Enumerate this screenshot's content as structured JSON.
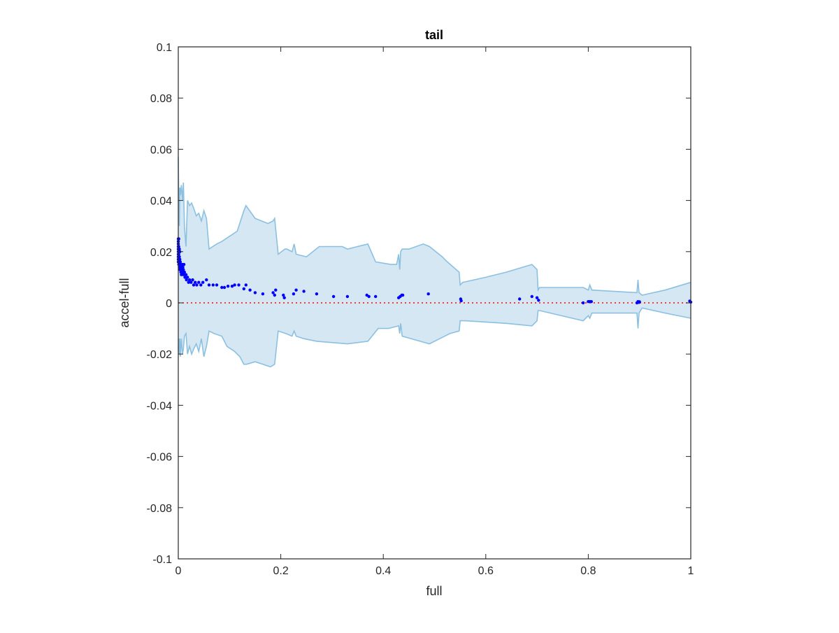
{
  "chart_data": {
    "type": "scatter",
    "title": "tail",
    "xlabel": "full",
    "ylabel": "accel-full",
    "xlim": [
      0,
      1
    ],
    "ylim": [
      -0.1,
      0.1
    ],
    "x_ticks": [
      0,
      0.2,
      0.4,
      0.6,
      0.8,
      1
    ],
    "x_tick_labels": [
      "0",
      "0.2",
      "0.4",
      "0.6",
      "0.8",
      "1"
    ],
    "y_ticks": [
      -0.1,
      -0.08,
      -0.06,
      -0.04,
      -0.02,
      0,
      0.02,
      0.04,
      0.06,
      0.08,
      0.1
    ],
    "y_tick_labels": [
      "-0.1",
      "-0.08",
      "-0.06",
      "-0.04",
      "-0.02",
      "0",
      "0.02",
      "0.04",
      "0.06",
      "0.08",
      "0.1"
    ],
    "grid": false,
    "reference_line": {
      "y": 0,
      "style": "dotted",
      "color": "#ff0000"
    },
    "colors": {
      "points": "#0000ff",
      "band_fill": "#d6e7f4",
      "band_edge": "#8cc0e0",
      "axes": "#262626"
    },
    "band": {
      "upper": [
        [
          0,
          0.057
        ],
        [
          0.001,
          0.04
        ],
        [
          0.002,
          0.03
        ],
        [
          0.003,
          0.045
        ],
        [
          0.004,
          0.042
        ],
        [
          0.006,
          0.046
        ],
        [
          0.008,
          0.04
        ],
        [
          0.01,
          0.047
        ],
        [
          0.012,
          0.03
        ],
        [
          0.015,
          0.022
        ],
        [
          0.018,
          0.04
        ],
        [
          0.022,
          0.038
        ],
        [
          0.026,
          0.039
        ],
        [
          0.03,
          0.037
        ],
        [
          0.035,
          0.034
        ],
        [
          0.04,
          0.035
        ],
        [
          0.045,
          0.032
        ],
        [
          0.05,
          0.036
        ],
        [
          0.055,
          0.033
        ],
        [
          0.06,
          0.021
        ],
        [
          0.075,
          0.023
        ],
        [
          0.085,
          0.024
        ],
        [
          0.1,
          0.026
        ],
        [
          0.115,
          0.028
        ],
        [
          0.128,
          0.036
        ],
        [
          0.132,
          0.038
        ],
        [
          0.15,
          0.033
        ],
        [
          0.175,
          0.031
        ],
        [
          0.185,
          0.032
        ],
        [
          0.188,
          0.033
        ],
        [
          0.195,
          0.019
        ],
        [
          0.208,
          0.021
        ],
        [
          0.212,
          0.021
        ],
        [
          0.222,
          0.02
        ],
        [
          0.226,
          0.023
        ],
        [
          0.23,
          0.019
        ],
        [
          0.25,
          0.018
        ],
        [
          0.275,
          0.022
        ],
        [
          0.32,
          0.022
        ],
        [
          0.33,
          0.021
        ],
        [
          0.37,
          0.023
        ],
        [
          0.385,
          0.016
        ],
        [
          0.415,
          0.015
        ],
        [
          0.426,
          0.015
        ],
        [
          0.43,
          0.019
        ],
        [
          0.432,
          0.013
        ],
        [
          0.434,
          0.02
        ],
        [
          0.437,
          0.021
        ],
        [
          0.45,
          0.021
        ],
        [
          0.478,
          0.023
        ],
        [
          0.49,
          0.022
        ],
        [
          0.515,
          0.018
        ],
        [
          0.525,
          0.016
        ],
        [
          0.548,
          0.012
        ],
        [
          0.55,
          0.007
        ],
        [
          0.555,
          0.008
        ],
        [
          0.6,
          0.01
        ],
        [
          0.64,
          0.012
        ],
        [
          0.69,
          0.015
        ],
        [
          0.7,
          0.013
        ],
        [
          0.702,
          0.005
        ],
        [
          0.705,
          0.006
        ],
        [
          0.79,
          0.006
        ],
        [
          0.8,
          0.005
        ],
        [
          0.803,
          0.007
        ],
        [
          0.807,
          0.005
        ],
        [
          0.895,
          0.004
        ],
        [
          0.897,
          0.009
        ],
        [
          0.899,
          0.004
        ],
        [
          0.905,
          0.003
        ],
        [
          0.95,
          0.005
        ],
        [
          1.0,
          0.008
        ]
      ],
      "lower": [
        [
          0,
          -0.018
        ],
        [
          0.001,
          -0.014
        ],
        [
          0.002,
          -0.02
        ],
        [
          0.003,
          -0.014
        ],
        [
          0.004,
          -0.021
        ],
        [
          0.006,
          -0.014
        ],
        [
          0.008,
          -0.02
        ],
        [
          0.01,
          -0.018
        ],
        [
          0.012,
          -0.013
        ],
        [
          0.015,
          -0.012
        ],
        [
          0.018,
          -0.02
        ],
        [
          0.022,
          -0.017
        ],
        [
          0.026,
          -0.02
        ],
        [
          0.03,
          -0.018
        ],
        [
          0.035,
          -0.016
        ],
        [
          0.04,
          -0.019
        ],
        [
          0.045,
          -0.014
        ],
        [
          0.05,
          -0.021
        ],
        [
          0.055,
          -0.017
        ],
        [
          0.06,
          -0.011
        ],
        [
          0.07,
          -0.012
        ],
        [
          0.085,
          -0.013
        ],
        [
          0.095,
          -0.017
        ],
        [
          0.11,
          -0.019
        ],
        [
          0.12,
          -0.021
        ],
        [
          0.128,
          -0.024
        ],
        [
          0.133,
          -0.024
        ],
        [
          0.15,
          -0.023
        ],
        [
          0.165,
          -0.024
        ],
        [
          0.18,
          -0.025
        ],
        [
          0.188,
          -0.024
        ],
        [
          0.195,
          -0.011
        ],
        [
          0.21,
          -0.012
        ],
        [
          0.222,
          -0.013
        ],
        [
          0.226,
          -0.011
        ],
        [
          0.23,
          -0.013
        ],
        [
          0.245,
          -0.014
        ],
        [
          0.27,
          -0.015
        ],
        [
          0.33,
          -0.016
        ],
        [
          0.37,
          -0.015
        ],
        [
          0.39,
          -0.01
        ],
        [
          0.41,
          -0.01
        ],
        [
          0.43,
          -0.009
        ],
        [
          0.432,
          -0.012
        ],
        [
          0.434,
          -0.008
        ],
        [
          0.437,
          -0.013
        ],
        [
          0.49,
          -0.016
        ],
        [
          0.53,
          -0.012
        ],
        [
          0.548,
          -0.011
        ],
        [
          0.55,
          -0.007
        ],
        [
          0.56,
          -0.007
        ],
        [
          0.64,
          -0.008
        ],
        [
          0.69,
          -0.009
        ],
        [
          0.7,
          -0.007
        ],
        [
          0.702,
          -0.003
        ],
        [
          0.705,
          -0.003
        ],
        [
          0.79,
          -0.007
        ],
        [
          0.8,
          -0.005
        ],
        [
          0.803,
          -0.006
        ],
        [
          0.807,
          -0.004
        ],
        [
          0.895,
          -0.004
        ],
        [
          0.897,
          -0.01
        ],
        [
          0.899,
          -0.004
        ],
        [
          0.905,
          -0.002
        ],
        [
          0.95,
          -0.004
        ],
        [
          1.0,
          -0.006
        ]
      ]
    },
    "series": [
      {
        "points": [
          [
            0.0,
            0.025
          ],
          [
            0.0,
            0.024
          ],
          [
            0.0,
            0.023
          ],
          [
            0.0,
            0.022
          ],
          [
            0.0,
            0.021
          ],
          [
            0.0,
            0.02
          ],
          [
            0.0,
            0.019
          ],
          [
            0.0,
            0.018
          ],
          [
            0.0,
            0.017
          ],
          [
            0.0,
            0.016
          ],
          [
            0.001,
            0.025
          ],
          [
            0.001,
            0.022
          ],
          [
            0.001,
            0.019
          ],
          [
            0.001,
            0.017
          ],
          [
            0.001,
            0.015
          ],
          [
            0.002,
            0.021
          ],
          [
            0.002,
            0.018
          ],
          [
            0.002,
            0.016
          ],
          [
            0.002,
            0.014
          ],
          [
            0.003,
            0.02
          ],
          [
            0.003,
            0.017
          ],
          [
            0.003,
            0.013
          ],
          [
            0.004,
            0.016
          ],
          [
            0.004,
            0.014
          ],
          [
            0.005,
            0.015
          ],
          [
            0.005,
            0.012
          ],
          [
            0.006,
            0.014
          ],
          [
            0.006,
            0.011
          ],
          [
            0.007,
            0.013
          ],
          [
            0.008,
            0.015
          ],
          [
            0.008,
            0.012
          ],
          [
            0.009,
            0.014
          ],
          [
            0.01,
            0.013
          ],
          [
            0.01,
            0.011
          ],
          [
            0.011,
            0.015
          ],
          [
            0.012,
            0.012
          ],
          [
            0.013,
            0.01
          ],
          [
            0.015,
            0.011
          ],
          [
            0.016,
            0.009
          ],
          [
            0.018,
            0.01
          ],
          [
            0.02,
            0.008
          ],
          [
            0.022,
            0.009
          ],
          [
            0.025,
            0.008
          ],
          [
            0.028,
            0.009
          ],
          [
            0.03,
            0.007
          ],
          [
            0.033,
            0.008
          ],
          [
            0.036,
            0.007
          ],
          [
            0.04,
            0.008
          ],
          [
            0.044,
            0.007
          ],
          [
            0.048,
            0.008
          ],
          [
            0.055,
            0.009
          ],
          [
            0.06,
            0.007
          ],
          [
            0.068,
            0.007
          ],
          [
            0.075,
            0.007
          ],
          [
            0.085,
            0.006
          ],
          [
            0.09,
            0.006
          ],
          [
            0.097,
            0.0065
          ],
          [
            0.105,
            0.0065
          ],
          [
            0.11,
            0.007
          ],
          [
            0.118,
            0.007
          ],
          [
            0.128,
            0.0055
          ],
          [
            0.132,
            0.007
          ],
          [
            0.14,
            0.005
          ],
          [
            0.15,
            0.004
          ],
          [
            0.165,
            0.0035
          ],
          [
            0.185,
            0.004
          ],
          [
            0.188,
            0.003
          ],
          [
            0.19,
            0.005
          ],
          [
            0.205,
            0.003
          ],
          [
            0.207,
            0.002
          ],
          [
            0.225,
            0.0035
          ],
          [
            0.23,
            0.005
          ],
          [
            0.245,
            0.0045
          ],
          [
            0.27,
            0.0035
          ],
          [
            0.303,
            0.0025
          ],
          [
            0.33,
            0.0025
          ],
          [
            0.368,
            0.003
          ],
          [
            0.372,
            0.0025
          ],
          [
            0.385,
            0.0025
          ],
          [
            0.43,
            0.002
          ],
          [
            0.433,
            0.0025
          ],
          [
            0.436,
            0.003
          ],
          [
            0.438,
            0.003
          ],
          [
            0.488,
            0.0035
          ],
          [
            0.551,
            0.0015
          ],
          [
            0.552,
            0.0008
          ],
          [
            0.666,
            0.0015
          ],
          [
            0.69,
            0.0025
          ],
          [
            0.7,
            0.002
          ],
          [
            0.703,
            0.001
          ],
          [
            0.79,
            0.0
          ],
          [
            0.8,
            0.0005
          ],
          [
            0.803,
            0.0005
          ],
          [
            0.806,
            0.0005
          ],
          [
            0.895,
            0.0
          ],
          [
            0.897,
            0.0005
          ],
          [
            0.899,
            0.0002
          ],
          [
            0.9,
            0.0004
          ],
          [
            0.998,
            0.0007
          ],
          [
            1.0,
            0.0003
          ]
        ]
      }
    ]
  }
}
